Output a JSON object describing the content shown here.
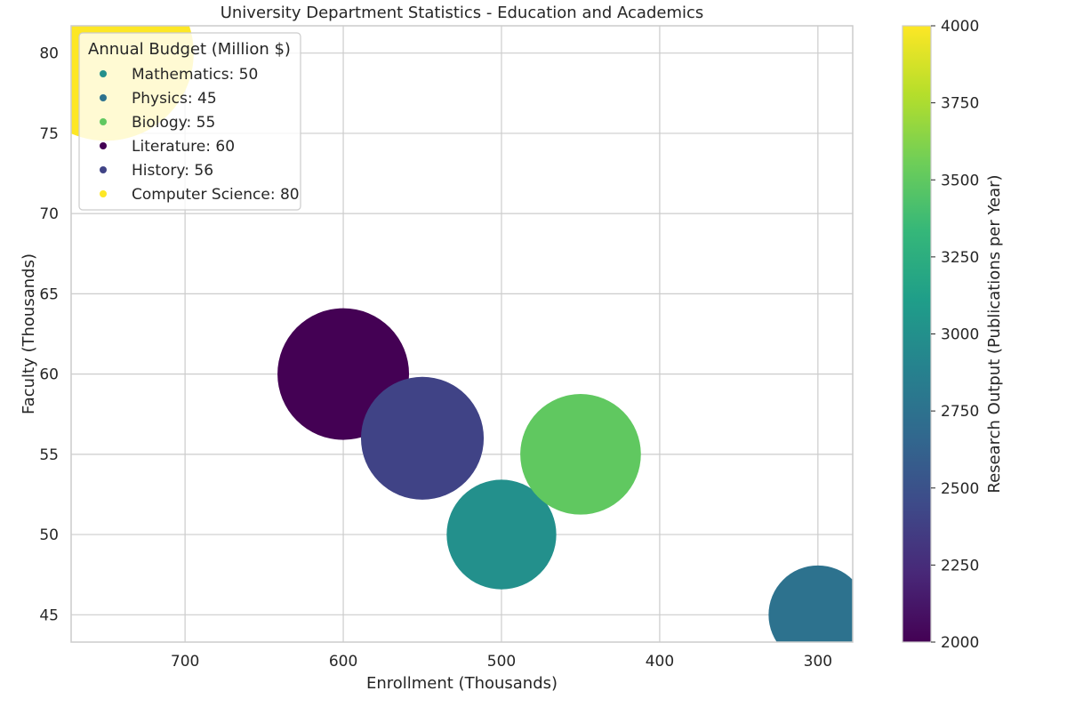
{
  "chart_data": {
    "type": "scatter",
    "title": "University Department Statistics - Education and Academics",
    "xlabel": "Enrollment (Thousands)",
    "ylabel": "Faculty (Thousands)",
    "xlim": [
      772,
      278
    ],
    "ylim": [
      43.3,
      81.7
    ],
    "x_reversed": true,
    "xticks": [
      700,
      600,
      500,
      400,
      300
    ],
    "yticks": [
      45,
      50,
      55,
      60,
      65,
      70,
      75,
      80
    ],
    "grid": true,
    "legend_title": "Annual Budget (Million $)",
    "legend_position": "top-left",
    "colorbar": {
      "label": "Research Output (Publications per Year)",
      "range": [
        2000,
        4000
      ],
      "ticks": [
        2000,
        2250,
        2500,
        2750,
        3000,
        3250,
        3500,
        3750,
        4000
      ],
      "colormap": "viridis"
    },
    "points": [
      {
        "department": "Mathematics",
        "enrollment": 500,
        "faculty": 50,
        "budget": 50,
        "research_output": 3000,
        "legend_label": "Mathematics: 50"
      },
      {
        "department": "Physics",
        "enrollment": 300,
        "faculty": 45,
        "budget": 45,
        "research_output": 2750,
        "legend_label": "Physics: 45"
      },
      {
        "department": "Biology",
        "enrollment": 450,
        "faculty": 55,
        "budget": 55,
        "research_output": 3500,
        "legend_label": "Biology: 55"
      },
      {
        "department": "Literature",
        "enrollment": 600,
        "faculty": 60,
        "budget": 60,
        "research_output": 2000,
        "legend_label": "Literature: 60"
      },
      {
        "department": "History",
        "enrollment": 550,
        "faculty": 56,
        "budget": 56,
        "research_output": 2400,
        "legend_label": "History: 56"
      },
      {
        "department": "Computer Science",
        "enrollment": 750,
        "faculty": 80,
        "budget": 80,
        "research_output": 4000,
        "legend_label": "Computer Science: 80"
      }
    ]
  }
}
